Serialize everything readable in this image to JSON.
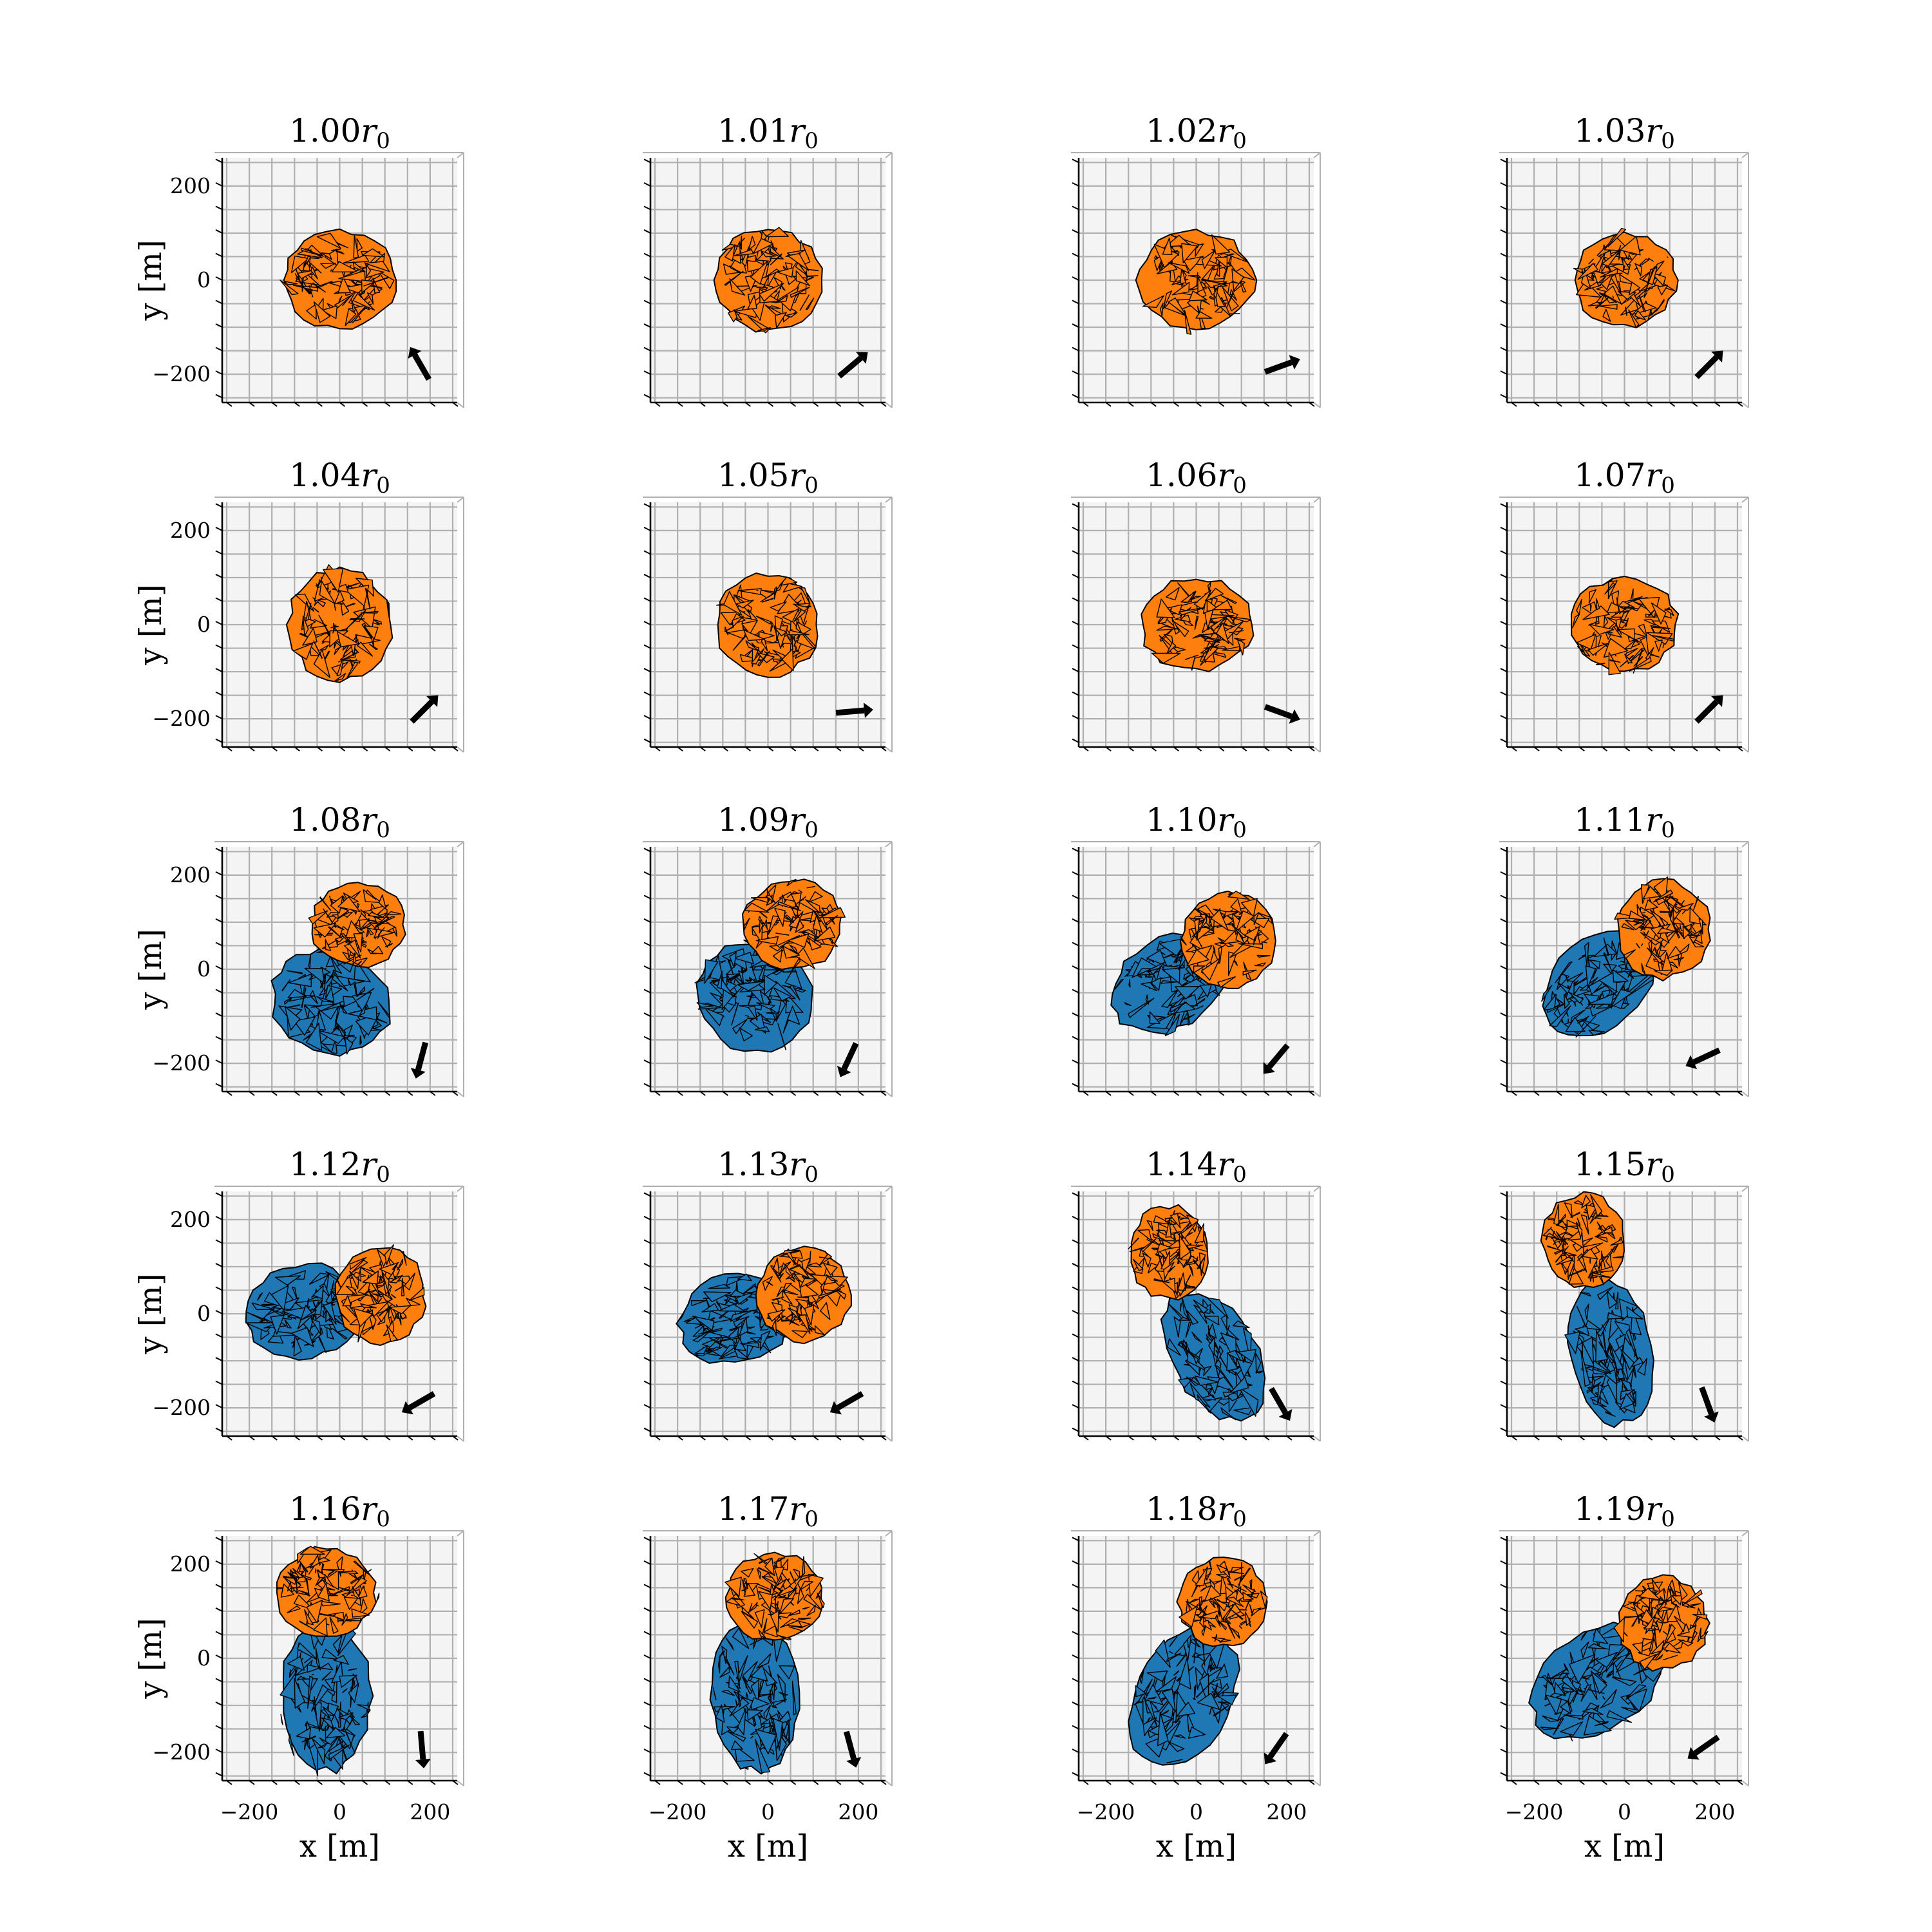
{
  "chart_data": {
    "type": "scatter",
    "layout": {
      "rows": 5,
      "cols": 4
    },
    "xlabel": "x [m]",
    "ylabel": "y [m]",
    "xticks": [
      "−200",
      "0",
      "200"
    ],
    "yticks": [
      "200",
      "0",
      "−200"
    ],
    "xlim": [
      -260,
      260
    ],
    "ylim": [
      -260,
      260
    ],
    "grid": true,
    "colors": {
      "bodyA": "#1f77b4",
      "bodyB": "#ff7f0e",
      "edge": "#000000",
      "pane": "#f4f4f4",
      "grid": "#b0b0b0",
      "arrow": "#000000"
    },
    "panels": [
      {
        "label": "1.00",
        "orange": {
          "cx": 0,
          "cy": 0,
          "rx": 125,
          "ry": 110,
          "rot": 0
        },
        "blue": null,
        "arrow_deg": 120
      },
      {
        "label": "1.01",
        "orange": {
          "cx": 0,
          "cy": 0,
          "rx": 120,
          "ry": 115,
          "rot": 0
        },
        "blue": null,
        "arrow_deg": 40
      },
      {
        "label": "1.02",
        "orange": {
          "cx": 0,
          "cy": 0,
          "rx": 130,
          "ry": 110,
          "rot": 0
        },
        "blue": null,
        "arrow_deg": 20
      },
      {
        "label": "1.03",
        "orange": {
          "cx": 0,
          "cy": 0,
          "rx": 115,
          "ry": 105,
          "rot": 0
        },
        "blue": null,
        "arrow_deg": 45
      },
      {
        "label": "1.04",
        "orange": {
          "cx": 0,
          "cy": 0,
          "rx": 115,
          "ry": 125,
          "rot": 0
        },
        "blue": null,
        "arrow_deg": 45
      },
      {
        "label": "1.05",
        "orange": {
          "cx": 0,
          "cy": 0,
          "rx": 115,
          "ry": 115,
          "rot": 0
        },
        "blue": null,
        "arrow_deg": 5
      },
      {
        "label": "1.06",
        "orange": {
          "cx": 0,
          "cy": 0,
          "rx": 125,
          "ry": 105,
          "rot": 0
        },
        "blue": null,
        "arrow_deg": -20
      },
      {
        "label": "1.07",
        "orange": {
          "cx": 0,
          "cy": 0,
          "rx": 120,
          "ry": 105,
          "rot": 0
        },
        "blue": null,
        "arrow_deg": 45
      },
      {
        "label": "1.08",
        "orange": {
          "cx": 40,
          "cy": 95,
          "rx": 105,
          "ry": 95,
          "rot": 0
        },
        "blue": {
          "cx": -20,
          "cy": -70,
          "rx": 115,
          "ry": 135,
          "rot": 70
        },
        "arrow_deg": -105
      },
      {
        "label": "1.09",
        "orange": {
          "cx": 55,
          "cy": 95,
          "rx": 110,
          "ry": 100,
          "rot": 0
        },
        "blue": {
          "cx": -30,
          "cy": -60,
          "rx": 120,
          "ry": 135,
          "rot": 65
        },
        "arrow_deg": -115
      },
      {
        "label": "1.10",
        "orange": {
          "cx": 70,
          "cy": 60,
          "rx": 105,
          "ry": 110,
          "rot": 0
        },
        "blue": {
          "cx": -60,
          "cy": -30,
          "rx": 140,
          "ry": 100,
          "rot": 30
        },
        "arrow_deg": -130
      },
      {
        "label": "1.11",
        "orange": {
          "cx": 85,
          "cy": 85,
          "rx": 105,
          "ry": 110,
          "rot": 0
        },
        "blue": {
          "cx": -55,
          "cy": -30,
          "rx": 145,
          "ry": 100,
          "rot": 40
        },
        "arrow_deg": -155
      },
      {
        "label": "1.12",
        "orange": {
          "cx": 90,
          "cy": 40,
          "rx": 100,
          "ry": 110,
          "rot": 0
        },
        "blue": {
          "cx": -80,
          "cy": 5,
          "rx": 130,
          "ry": 105,
          "rot": 10
        },
        "arrow_deg": -150
      },
      {
        "label": "1.13",
        "orange": {
          "cx": 80,
          "cy": 40,
          "rx": 105,
          "ry": 105,
          "rot": 0
        },
        "blue": {
          "cx": -70,
          "cy": -10,
          "rx": 130,
          "ry": 100,
          "rot": 15
        },
        "arrow_deg": -150
      },
      {
        "label": "1.14",
        "orange": {
          "cx": -60,
          "cy": 130,
          "rx": 90,
          "ry": 105,
          "rot": 0
        },
        "blue": {
          "cx": 40,
          "cy": -90,
          "rx": 160,
          "ry": 95,
          "rot": -60
        },
        "arrow_deg": -60
      },
      {
        "label": "1.15",
        "orange": {
          "cx": -90,
          "cy": 155,
          "rx": 95,
          "ry": 105,
          "rot": 0
        },
        "blue": {
          "cx": -30,
          "cy": -80,
          "rx": 165,
          "ry": 95,
          "rot": -80
        },
        "arrow_deg": -70
      },
      {
        "label": "1.16",
        "orange": {
          "cx": -30,
          "cy": 140,
          "rx": 110,
          "ry": 100,
          "rot": 0
        },
        "blue": {
          "cx": -30,
          "cy": -80,
          "rx": 170,
          "ry": 100,
          "rot": -90
        },
        "arrow_deg": -85
      },
      {
        "label": "1.17",
        "orange": {
          "cx": 15,
          "cy": 130,
          "rx": 110,
          "ry": 100,
          "rot": 0
        },
        "blue": {
          "cx": -30,
          "cy": -80,
          "rx": 170,
          "ry": 100,
          "rot": -85
        },
        "arrow_deg": -75
      },
      {
        "label": "1.18",
        "orange": {
          "cx": 60,
          "cy": 120,
          "rx": 100,
          "ry": 100,
          "rot": 0
        },
        "blue": {
          "cx": -30,
          "cy": -80,
          "rx": 165,
          "ry": 110,
          "rot": 65
        },
        "arrow_deg": -125
      },
      {
        "label": "1.19",
        "orange": {
          "cx": 85,
          "cy": 75,
          "rx": 100,
          "ry": 105,
          "rot": 0
        },
        "blue": {
          "cx": -60,
          "cy": -50,
          "rx": 165,
          "ry": 110,
          "rot": 35
        },
        "arrow_deg": -145
      }
    ]
  }
}
